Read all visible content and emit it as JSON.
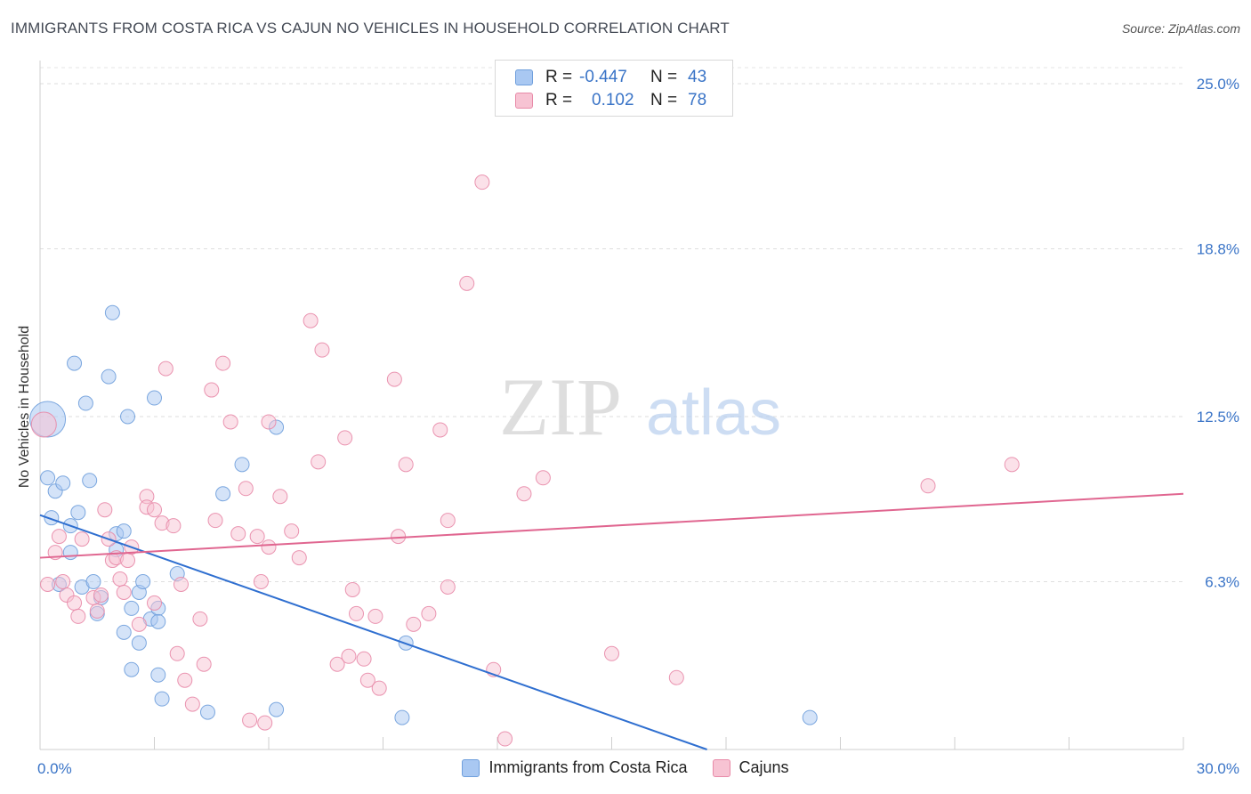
{
  "header": {
    "title": "IMMIGRANTS FROM COSTA RICA VS CAJUN NO VEHICLES IN HOUSEHOLD CORRELATION CHART",
    "source": "Source: ZipAtlas.com"
  },
  "watermark": {
    "zip": "ZIP",
    "atlas": "atlas"
  },
  "legend": {
    "rows": [
      {
        "r_label": "R =",
        "r_value": "-0.447",
        "n_label": "N =",
        "n_value": "43",
        "color": "#a9c8f2",
        "border": "#6f9fdc"
      },
      {
        "r_label": "R =",
        "r_value": "0.102",
        "n_label": "N =",
        "n_value": "78",
        "color": "#f7c3d3",
        "border": "#e88aa8"
      }
    ]
  },
  "bottom_legend": [
    {
      "label": "Immigrants from Costa Rica",
      "color": "#a9c8f2",
      "border": "#6f9fdc"
    },
    {
      "label": "Cajuns",
      "color": "#f7c3d3",
      "border": "#e88aa8"
    }
  ],
  "chart_data": {
    "type": "scatter",
    "ylabel": "No Vehicles in Household",
    "xlim": [
      0,
      30
    ],
    "ylim": [
      0,
      25.6
    ],
    "x_tick_labels": [
      {
        "value": 0,
        "label": "0.0%"
      },
      {
        "value": 30,
        "label": "30.0%"
      }
    ],
    "y_tick_labels": [
      {
        "value": 6.3,
        "label": "6.3%"
      },
      {
        "value": 12.5,
        "label": "12.5%"
      },
      {
        "value": 18.8,
        "label": "18.8%"
      },
      {
        "value": 25.0,
        "label": "25.0%"
      }
    ],
    "grid": true,
    "legend_position": "top-center",
    "series": [
      {
        "name": "Immigrants from Costa Rica",
        "color": "#6f9fdc",
        "fill": "#a9c8f2",
        "trend": {
          "x": [
            0,
            17.5
          ],
          "y": [
            8.8,
            0
          ]
        },
        "points": [
          [
            0.2,
            12.4
          ],
          [
            0.2,
            10.2
          ],
          [
            0.4,
            9.7
          ],
          [
            0.6,
            10.0
          ],
          [
            0.3,
            8.7
          ],
          [
            0.8,
            8.4
          ],
          [
            0.9,
            14.5
          ],
          [
            1.2,
            13.0
          ],
          [
            1.3,
            10.1
          ],
          [
            0.8,
            7.4
          ],
          [
            0.5,
            6.2
          ],
          [
            1.1,
            6.1
          ],
          [
            1.4,
            6.3
          ],
          [
            1.6,
            5.7
          ],
          [
            1.5,
            5.1
          ],
          [
            1.8,
            14.0
          ],
          [
            1.9,
            16.4
          ],
          [
            2.3,
            12.5
          ],
          [
            2.0,
            8.1
          ],
          [
            2.0,
            7.5
          ],
          [
            2.2,
            8.2
          ],
          [
            2.6,
            5.9
          ],
          [
            2.7,
            6.3
          ],
          [
            2.4,
            5.3
          ],
          [
            2.2,
            4.4
          ],
          [
            2.6,
            4.0
          ],
          [
            2.4,
            3.0
          ],
          [
            2.9,
            4.9
          ],
          [
            3.1,
            5.3
          ],
          [
            3.1,
            4.8
          ],
          [
            3.1,
            2.8
          ],
          [
            3.2,
            1.9
          ],
          [
            3.0,
            13.2
          ],
          [
            3.6,
            6.6
          ],
          [
            4.4,
            1.4
          ],
          [
            4.8,
            9.6
          ],
          [
            5.3,
            10.7
          ],
          [
            6.2,
            12.1
          ],
          [
            6.2,
            1.5
          ],
          [
            9.6,
            4.0
          ],
          [
            9.5,
            1.2
          ],
          [
            20.2,
            1.2
          ],
          [
            1.0,
            8.9
          ]
        ]
      },
      {
        "name": "Cajuns",
        "color": "#e88aa8",
        "fill": "#f7c3d3",
        "trend": {
          "x": [
            0,
            30
          ],
          "y": [
            7.2,
            9.6
          ]
        },
        "points": [
          [
            0.1,
            12.2
          ],
          [
            0.2,
            6.2
          ],
          [
            0.4,
            7.4
          ],
          [
            0.5,
            8.0
          ],
          [
            0.7,
            5.8
          ],
          [
            0.6,
            6.3
          ],
          [
            0.9,
            5.5
          ],
          [
            1.0,
            5.0
          ],
          [
            1.1,
            7.9
          ],
          [
            1.4,
            5.7
          ],
          [
            1.5,
            5.2
          ],
          [
            1.6,
            5.8
          ],
          [
            1.7,
            9.0
          ],
          [
            1.8,
            7.9
          ],
          [
            1.9,
            7.1
          ],
          [
            2.0,
            7.2
          ],
          [
            2.1,
            6.4
          ],
          [
            2.2,
            5.9
          ],
          [
            2.3,
            7.1
          ],
          [
            2.4,
            7.6
          ],
          [
            2.6,
            4.7
          ],
          [
            2.8,
            9.5
          ],
          [
            2.8,
            9.1
          ],
          [
            3.0,
            9.0
          ],
          [
            3.0,
            5.5
          ],
          [
            3.2,
            8.5
          ],
          [
            3.3,
            14.3
          ],
          [
            3.5,
            8.4
          ],
          [
            3.6,
            3.6
          ],
          [
            3.7,
            6.2
          ],
          [
            3.8,
            2.6
          ],
          [
            4.0,
            1.7
          ],
          [
            4.2,
            4.9
          ],
          [
            4.3,
            3.2
          ],
          [
            4.5,
            13.5
          ],
          [
            4.6,
            8.6
          ],
          [
            4.8,
            14.5
          ],
          [
            5.0,
            12.3
          ],
          [
            5.2,
            8.1
          ],
          [
            5.4,
            9.8
          ],
          [
            5.5,
            1.1
          ],
          [
            5.7,
            8.0
          ],
          [
            5.8,
            6.3
          ],
          [
            5.9,
            1.0
          ],
          [
            6.0,
            7.6
          ],
          [
            6.0,
            12.3
          ],
          [
            6.3,
            9.5
          ],
          [
            6.6,
            8.2
          ],
          [
            6.8,
            7.2
          ],
          [
            7.1,
            16.1
          ],
          [
            7.3,
            10.8
          ],
          [
            7.4,
            15.0
          ],
          [
            7.8,
            3.2
          ],
          [
            8.0,
            11.7
          ],
          [
            8.1,
            3.5
          ],
          [
            8.2,
            6.0
          ],
          [
            8.3,
            5.1
          ],
          [
            8.5,
            3.4
          ],
          [
            8.6,
            2.6
          ],
          [
            8.8,
            5.0
          ],
          [
            8.9,
            2.3
          ],
          [
            9.3,
            13.9
          ],
          [
            9.4,
            8.0
          ],
          [
            9.6,
            10.7
          ],
          [
            9.8,
            4.7
          ],
          [
            10.2,
            5.1
          ],
          [
            10.5,
            12.0
          ],
          [
            10.7,
            8.6
          ],
          [
            10.7,
            6.1
          ],
          [
            11.2,
            17.5
          ],
          [
            11.6,
            21.3
          ],
          [
            11.9,
            3.0
          ],
          [
            12.2,
            0.4
          ],
          [
            12.7,
            9.6
          ],
          [
            13.2,
            10.2
          ],
          [
            15.0,
            3.6
          ],
          [
            16.7,
            2.7
          ],
          [
            23.3,
            9.9
          ],
          [
            25.5,
            10.7
          ]
        ]
      }
    ]
  }
}
